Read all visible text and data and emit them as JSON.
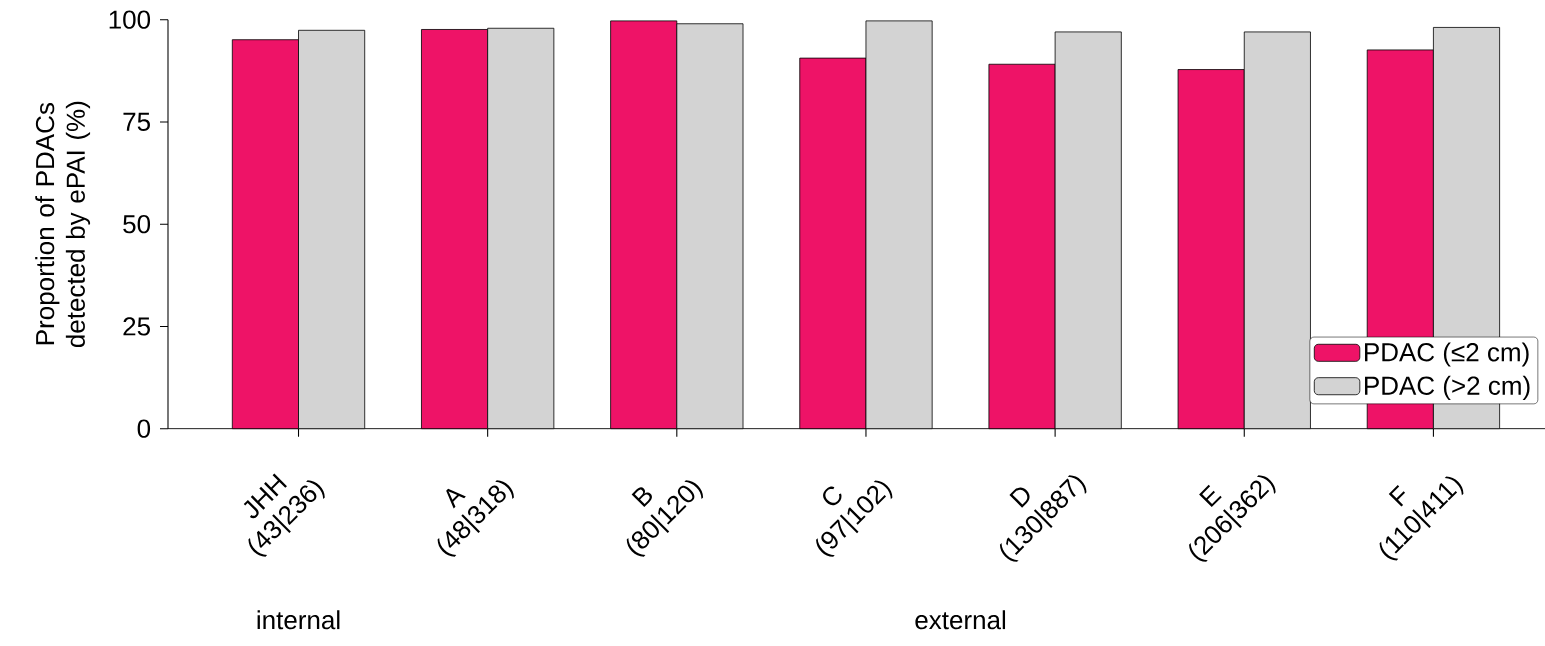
{
  "chart_data": {
    "type": "bar",
    "ylabel": "Proportion of PDACs detected by ePAI (%)",
    "categories": [
      "JHH (43|236)",
      "A (48|318)",
      "B (80|120)",
      "C (97|102)",
      "D (130|887)",
      "E (206|362)",
      "F (110|411)"
    ],
    "series": [
      {
        "name": "PDAC (≤2 cm)",
        "color": "#ee1367",
        "values": [
          95.1,
          97.6,
          99.7,
          90.6,
          89.1,
          87.8,
          92.6
        ]
      },
      {
        "name": "PDAC (>2 cm)",
        "color": "#d3d3d3",
        "values": [
          97.4,
          97.9,
          99.0,
          99.7,
          97.0,
          97.0,
          98.1
        ]
      }
    ],
    "ylim": [
      0,
      100
    ],
    "yticks": [
      0,
      25,
      50,
      75,
      100
    ],
    "grid": false,
    "legend": "bottom right",
    "annotations": [
      "internal",
      "external"
    ]
  }
}
